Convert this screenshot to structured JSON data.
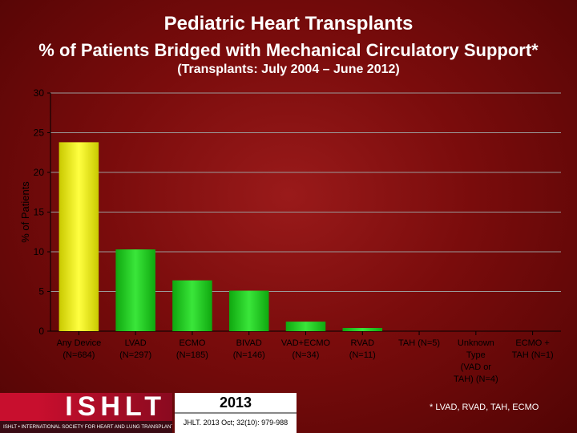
{
  "header": {
    "title": "Pediatric Heart Transplants",
    "subtitle": "% of Patients Bridged with Mechanical Circulatory Support*",
    "period": "(Transplants: July 2004 – June 2012)"
  },
  "chart_data": {
    "type": "bar",
    "categories": [
      [
        "Any Device",
        "(N=684)"
      ],
      [
        "LVAD",
        "(N=297)"
      ],
      [
        "ECMO",
        "(N=185)"
      ],
      [
        "BIVAD",
        "(N=146)"
      ],
      [
        "VAD+ECMO",
        "(N=34)"
      ],
      [
        "RVAD",
        "(N=11)"
      ],
      [
        "TAH (N=5)"
      ],
      [
        "Unknown",
        "Type",
        "(VAD or",
        "TAH) (N=4)"
      ],
      [
        "ECMO +",
        "TAH (N=1)"
      ]
    ],
    "values": [
      23.8,
      10.3,
      6.4,
      5.1,
      1.2,
      0.4,
      0.0,
      0.0,
      0.0
    ],
    "bar_colors": [
      "#f2f20a",
      "#19d019",
      "#19d019",
      "#19d019",
      "#19d019",
      "#19d019",
      "#19d019",
      "#19d019",
      "#19d019"
    ],
    "ylabel": "% of Patients",
    "yticks": [
      0,
      5,
      10,
      15,
      20,
      25,
      30
    ],
    "ylim": [
      0,
      30
    ],
    "grid": true
  },
  "footer": {
    "logo_text": "ISHLT",
    "logo_subtext": "ISHLT • INTERNATIONAL SOCIETY FOR HEART AND LUNG TRANSPLANTATION",
    "year": "2013",
    "citation": "JHLT. 2013 Oct; 32(10): 979-988",
    "footnote": "* LVAD, RVAD, TAH, ECMO"
  },
  "colors": {
    "background": "#7a0c0c",
    "grid": "#9a9a9a",
    "axis_text": "#000000",
    "highlight_bar": "#f2f20a",
    "bar": "#19d019"
  }
}
